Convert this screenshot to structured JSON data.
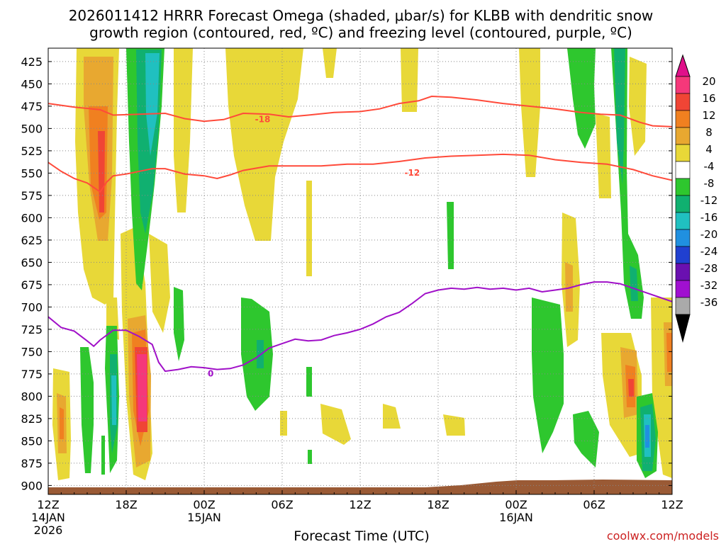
{
  "chart_data": {
    "type": "heatmap",
    "title_line1": "2026011412 HRRR Forecast Omega (shaded, μbar/s) for KLBB with dendritic snow",
    "title_line2": "growth region (contoured, red, ºC) and freezing level (contoured, purple, ºC)",
    "xlabel": "Forecast Time (UTC)",
    "credit": "coolwx.com/models",
    "x_range_hours": [
      0,
      48
    ],
    "y_range_mb": [
      410,
      910
    ],
    "y_ticks": [
      "425",
      "450",
      "475",
      "500",
      "525",
      "550",
      "575",
      "600",
      "625",
      "650",
      "675",
      "700",
      "725",
      "750",
      "775",
      "800",
      "825",
      "850",
      "875",
      "900"
    ],
    "x_ticks": [
      {
        "hour": 0,
        "label": "12Z",
        "date": "14JAN",
        "year": "2026"
      },
      {
        "hour": 6,
        "label": "18Z",
        "date": "",
        "year": ""
      },
      {
        "hour": 12,
        "label": "00Z",
        "date": "15JAN",
        "year": ""
      },
      {
        "hour": 18,
        "label": "06Z",
        "date": "",
        "year": ""
      },
      {
        "hour": 24,
        "label": "12Z",
        "date": "",
        "year": ""
      },
      {
        "hour": 30,
        "label": "18Z",
        "date": "",
        "year": ""
      },
      {
        "hour": 36,
        "label": "00Z",
        "date": "16JAN",
        "year": ""
      },
      {
        "hour": 42,
        "label": "06Z",
        "date": "",
        "year": ""
      },
      {
        "hour": 48,
        "label": "12Z",
        "date": "",
        "year": ""
      }
    ],
    "colorbar": {
      "labels": [
        "20",
        "16",
        "12",
        "8",
        "4",
        "-4",
        "-8",
        "-12",
        "-16",
        "-20",
        "-24",
        "-28",
        "-32",
        "-36"
      ],
      "colors": [
        "#f5387a",
        "#f04535",
        "#f08020",
        "#e8a830",
        "#e8d838",
        "#ffffff",
        "#2ec72e",
        "#10b070",
        "#20c0c0",
        "#2090e0",
        "#2040d0",
        "#6a10b0",
        "#a010d0",
        "#aaaaaa"
      ],
      "cap_top": "#e0108a",
      "cap_bottom": "#000000"
    },
    "series": [
      {
        "name": "-18",
        "color": "#ff4a3a",
        "label": "-18",
        "label_at": [
          16.5,
          489
        ],
        "points": [
          [
            0,
            472
          ],
          [
            2,
            476
          ],
          [
            4,
            479
          ],
          [
            5,
            485
          ],
          [
            7,
            484
          ],
          [
            9,
            483
          ],
          [
            10.5,
            489
          ],
          [
            12,
            492
          ],
          [
            13.5,
            490
          ],
          [
            15,
            483
          ],
          [
            17,
            484
          ],
          [
            18.5,
            487
          ],
          [
            20,
            485
          ],
          [
            22,
            482
          ],
          [
            24,
            481
          ],
          [
            25.5,
            478
          ],
          [
            27,
            472
          ],
          [
            28.5,
            469
          ],
          [
            29.5,
            464
          ],
          [
            31,
            465
          ],
          [
            33,
            468
          ],
          [
            35,
            472
          ],
          [
            37,
            475
          ],
          [
            39,
            478
          ],
          [
            41,
            482
          ],
          [
            42.5,
            484
          ],
          [
            44,
            485
          ],
          [
            45.5,
            493
          ],
          [
            46.5,
            497
          ],
          [
            48,
            498
          ]
        ]
      },
      {
        "name": "-12",
        "color": "#ff4a3a",
        "label": "-12",
        "label_at": [
          28,
          549
        ],
        "points": [
          [
            0,
            538
          ],
          [
            1,
            548
          ],
          [
            2,
            556
          ],
          [
            3,
            561
          ],
          [
            4,
            571
          ],
          [
            4.5,
            560
          ],
          [
            5,
            553
          ],
          [
            6,
            551
          ],
          [
            8,
            545
          ],
          [
            9,
            545
          ],
          [
            10.5,
            551
          ],
          [
            12,
            553
          ],
          [
            13,
            556
          ],
          [
            14,
            552
          ],
          [
            15,
            547
          ],
          [
            17,
            542
          ],
          [
            19,
            542
          ],
          [
            21,
            542
          ],
          [
            23,
            540
          ],
          [
            25,
            540
          ],
          [
            27,
            537
          ],
          [
            29,
            533
          ],
          [
            31,
            531
          ],
          [
            33,
            530
          ],
          [
            35,
            529
          ],
          [
            37,
            530
          ],
          [
            39,
            535
          ],
          [
            41,
            538
          ],
          [
            43,
            540
          ],
          [
            45,
            546
          ],
          [
            46.5,
            553
          ],
          [
            48,
            558
          ]
        ]
      },
      {
        "name": "0",
        "color": "#a010c8",
        "label": "0",
        "label_at": [
          12.5,
          774
        ],
        "points": [
          [
            0,
            711
          ],
          [
            1,
            723
          ],
          [
            2,
            727
          ],
          [
            3,
            738
          ],
          [
            3.5,
            744
          ],
          [
            4,
            737
          ],
          [
            5,
            726
          ],
          [
            6,
            726
          ],
          [
            7,
            733
          ],
          [
            8,
            742
          ],
          [
            8.5,
            762
          ],
          [
            9,
            772
          ],
          [
            10,
            770
          ],
          [
            11,
            767
          ],
          [
            12,
            768
          ],
          [
            13,
            770
          ],
          [
            14,
            769
          ],
          [
            15,
            765
          ],
          [
            16,
            757
          ],
          [
            17,
            746
          ],
          [
            18,
            741
          ],
          [
            19,
            736
          ],
          [
            20,
            738
          ],
          [
            21,
            737
          ],
          [
            22,
            732
          ],
          [
            23,
            729
          ],
          [
            24,
            725
          ],
          [
            25,
            719
          ],
          [
            26,
            711
          ],
          [
            27,
            706
          ],
          [
            28,
            696
          ],
          [
            29,
            685
          ],
          [
            30,
            681
          ],
          [
            31,
            679
          ],
          [
            32,
            680
          ],
          [
            33,
            678
          ],
          [
            34,
            680
          ],
          [
            35,
            679
          ],
          [
            36,
            681
          ],
          [
            37,
            679
          ],
          [
            38,
            683
          ],
          [
            39,
            681
          ],
          [
            40,
            679
          ],
          [
            41,
            675
          ],
          [
            42,
            672
          ],
          [
            43,
            672
          ],
          [
            44,
            674
          ],
          [
            45,
            679
          ],
          [
            46,
            684
          ],
          [
            47,
            689
          ],
          [
            48,
            694
          ]
        ]
      }
    ]
  }
}
